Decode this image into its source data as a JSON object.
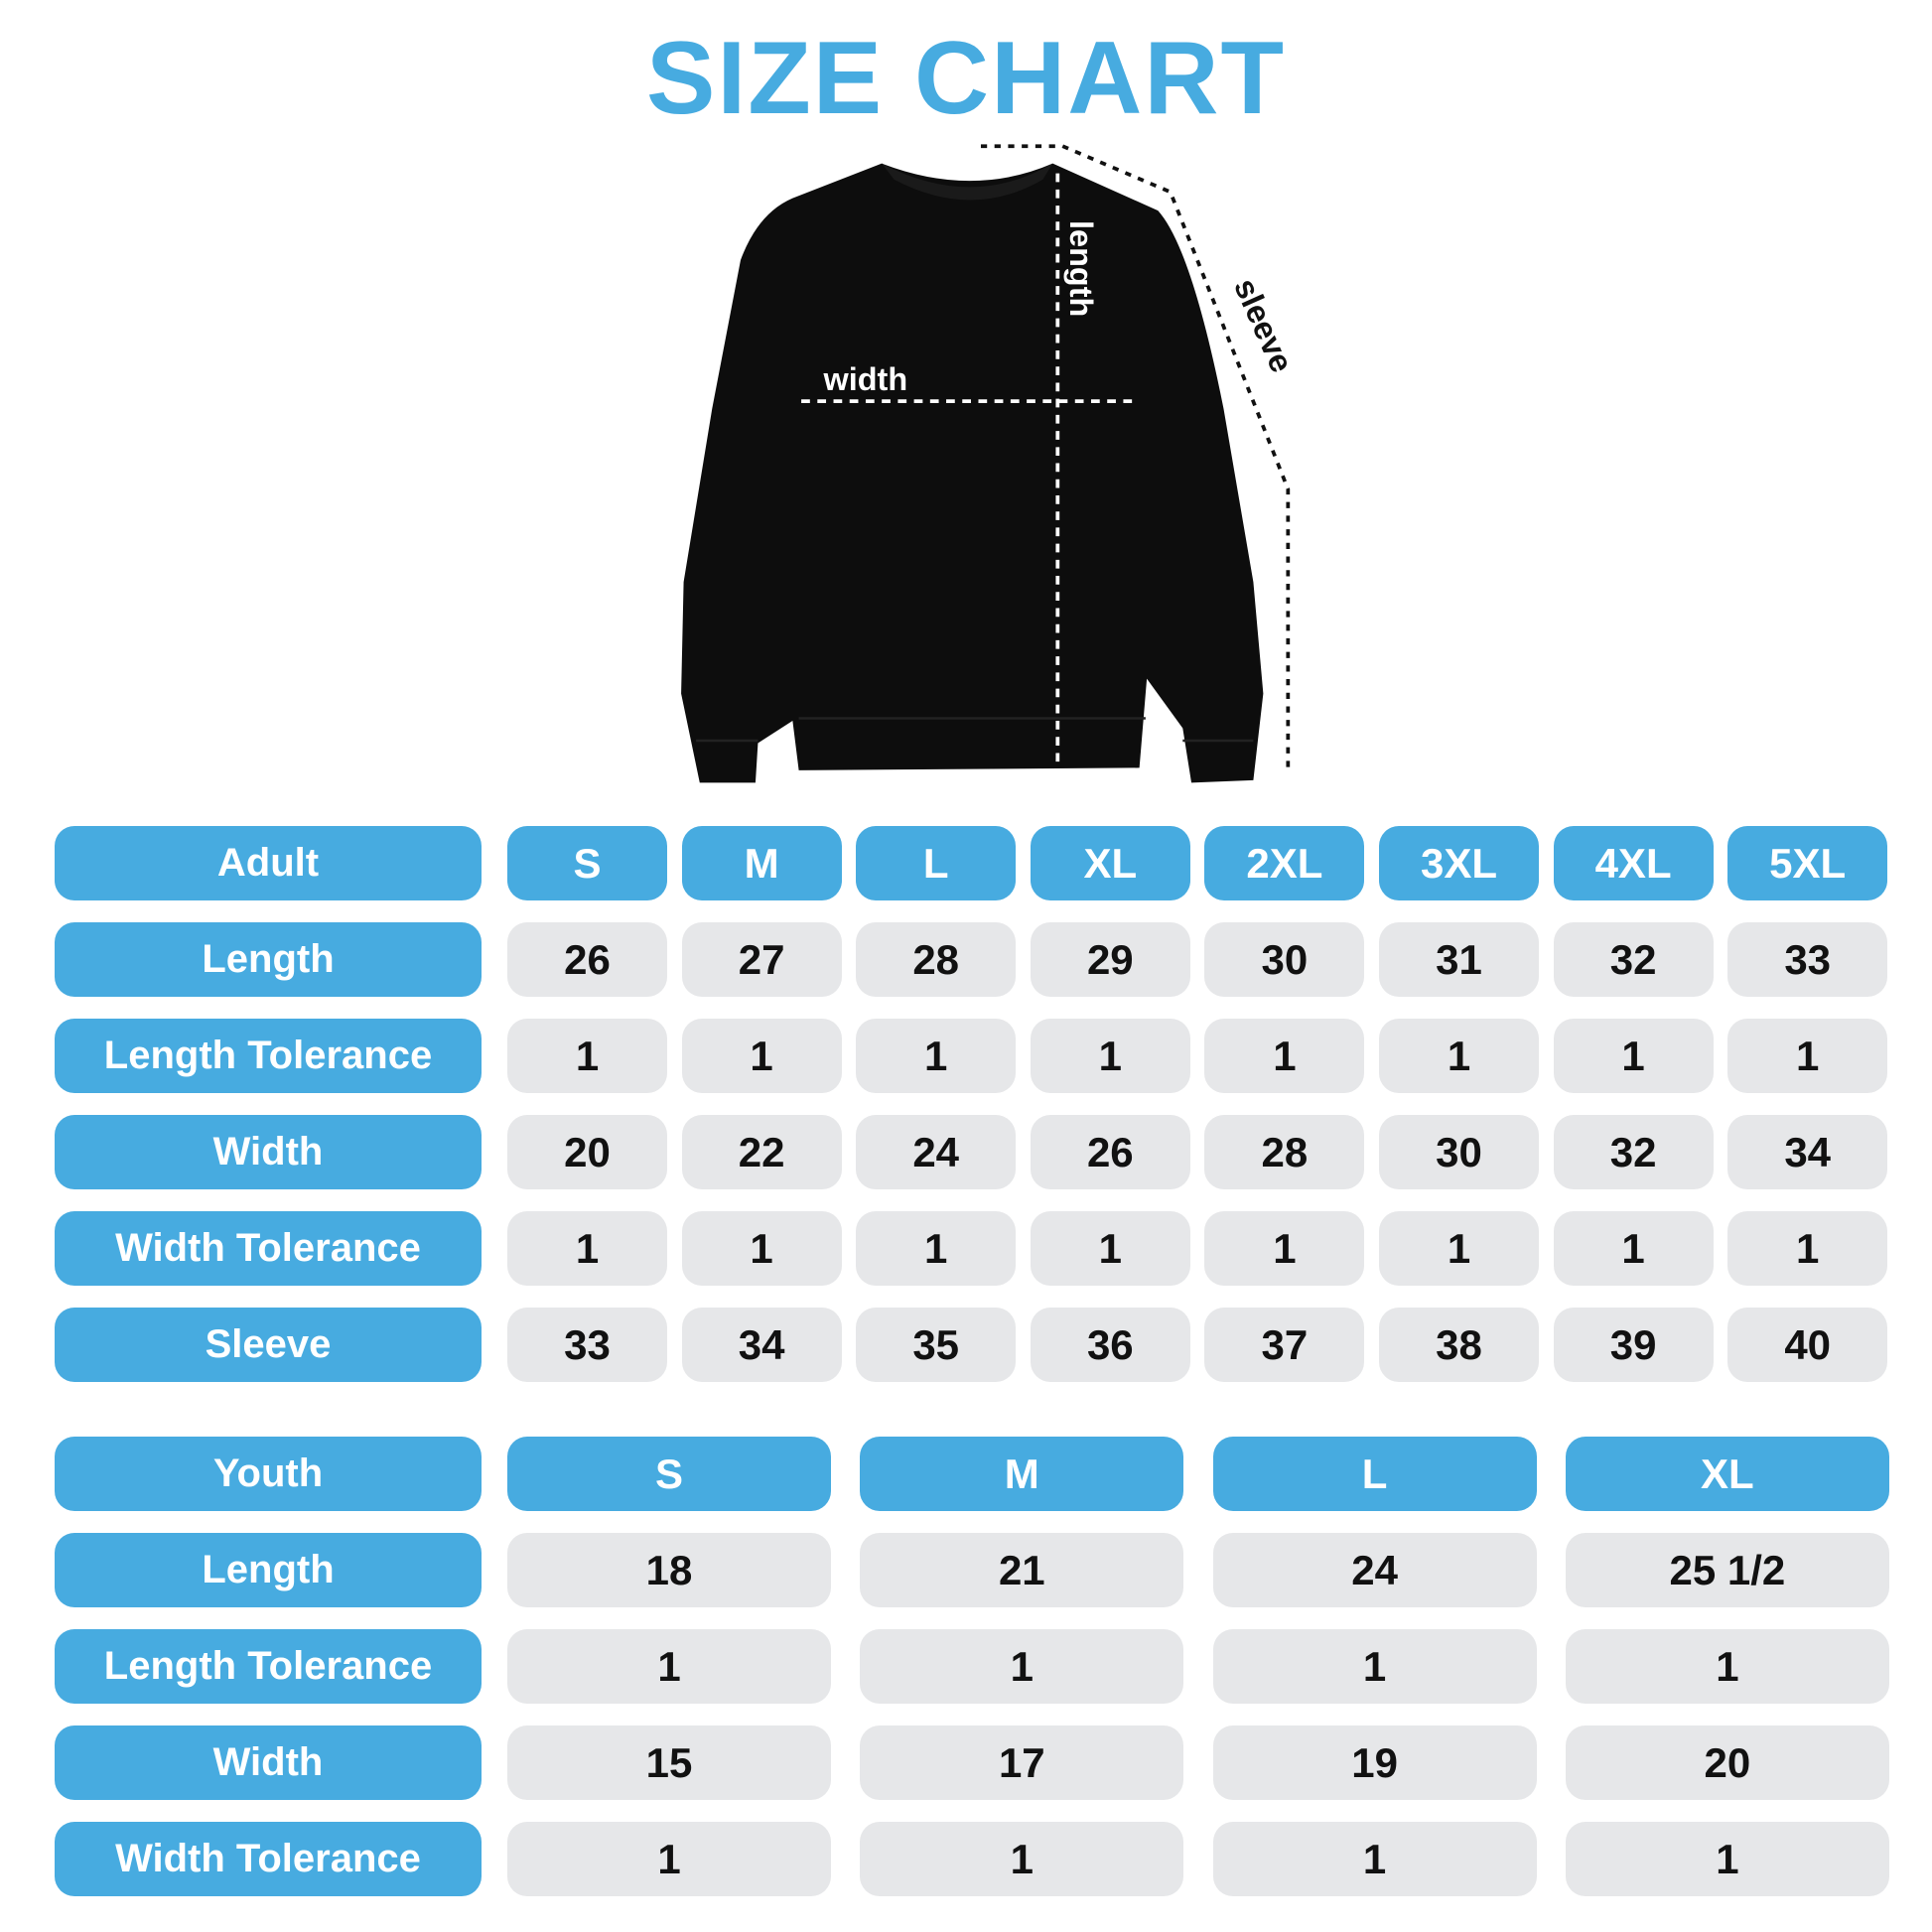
{
  "title": "SIZE CHART",
  "diagram": {
    "width_label": "width",
    "length_label": "length",
    "sleeve_label": "sleeve"
  },
  "colors": {
    "accent": "#47abe0",
    "cell": "#e6e7e9",
    "text": "#111111",
    "garment": "#0d0d0d"
  },
  "adult": {
    "header": "Adult",
    "sizes": [
      "S",
      "M",
      "L",
      "XL",
      "2XL",
      "3XL",
      "4XL",
      "5XL"
    ],
    "rows": [
      {
        "label": "Length",
        "values": [
          "26",
          "27",
          "28",
          "29",
          "30",
          "31",
          "32",
          "33"
        ]
      },
      {
        "label": "Length Tolerance",
        "values": [
          "1",
          "1",
          "1",
          "1",
          "1",
          "1",
          "1",
          "1"
        ]
      },
      {
        "label": "Width",
        "values": [
          "20",
          "22",
          "24",
          "26",
          "28",
          "30",
          "32",
          "34"
        ]
      },
      {
        "label": "Width Tolerance",
        "values": [
          "1",
          "1",
          "1",
          "1",
          "1",
          "1",
          "1",
          "1"
        ]
      },
      {
        "label": "Sleeve",
        "values": [
          "33",
          "34",
          "35",
          "36",
          "37",
          "38",
          "39",
          "40"
        ]
      }
    ]
  },
  "youth": {
    "header": "Youth",
    "sizes": [
      "S",
      "M",
      "L",
      "XL"
    ],
    "rows": [
      {
        "label": "Length",
        "values": [
          "18",
          "21",
          "24",
          "25 1/2"
        ]
      },
      {
        "label": "Length Tolerance",
        "values": [
          "1",
          "1",
          "1",
          "1"
        ]
      },
      {
        "label": "Width",
        "values": [
          "15",
          "17",
          "19",
          "20"
        ]
      },
      {
        "label": "Width Tolerance",
        "values": [
          "1",
          "1",
          "1",
          "1"
        ]
      }
    ]
  }
}
